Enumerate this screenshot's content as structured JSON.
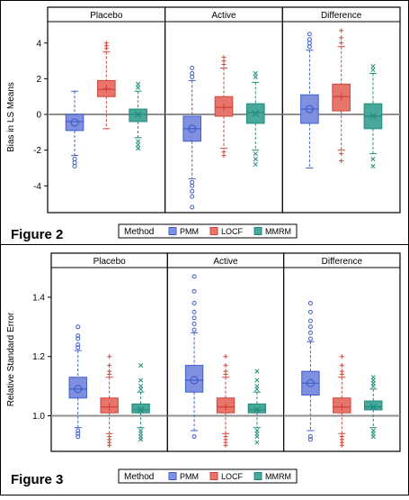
{
  "colors": {
    "pmm": "#3f5ecb",
    "locf": "#d1453a",
    "mmrm": "#1e8c7a",
    "pmm_fill": "#7f90e0",
    "locf_fill": "#e8756b",
    "mmrm_fill": "#4aa89a",
    "ref_line": "#909090"
  },
  "legend": {
    "title": "Method",
    "items": [
      "PMM",
      "LOCF",
      "MMRM"
    ]
  },
  "chart_data": [
    {
      "type": "box",
      "figure_label": "Figure 2",
      "ylabel": "Bias in LS Means",
      "panels": [
        "Placebo",
        "Active",
        "Difference"
      ],
      "yticks": [
        -4,
        -2,
        0,
        2,
        4
      ],
      "ylim": [
        -5.5,
        5.2
      ],
      "reference_line": 0,
      "series": [
        {
          "name": "PMM",
          "boxes": [
            {
              "panel": "Placebo",
              "whisker_low": -2.3,
              "q1": -0.9,
              "median": -0.4,
              "q3": 0.0,
              "whisker_high": 1.3,
              "mean": -0.45,
              "outliers": [
                -2.5,
                -2.7,
                -2.9
              ]
            },
            {
              "panel": "Active",
              "whisker_low": -3.6,
              "q1": -1.5,
              "median": -0.8,
              "q3": -0.1,
              "whisker_high": 1.9,
              "mean": -0.8,
              "outliers": [
                -3.8,
                -4.0,
                -4.3,
                -4.6,
                -5.2,
                2.1,
                2.3,
                2.6
              ]
            },
            {
              "panel": "Difference",
              "whisker_low": -3.0,
              "q1": -0.5,
              "median": 0.3,
              "q3": 1.1,
              "whisker_high": 3.6,
              "mean": 0.3,
              "outliers": [
                3.8,
                4.0,
                4.2,
                4.5
              ]
            }
          ]
        },
        {
          "name": "LOCF",
          "boxes": [
            {
              "panel": "Placebo",
              "whisker_low": -0.8,
              "q1": 1.0,
              "median": 1.4,
              "q3": 1.9,
              "whisker_high": 3.5,
              "mean": 1.45,
              "outliers": [
                3.7,
                3.85,
                4.0
              ]
            },
            {
              "panel": "Active",
              "whisker_low": -1.9,
              "q1": -0.1,
              "median": 0.4,
              "q3": 1.0,
              "whisker_high": 2.6,
              "mean": 0.4,
              "outliers": [
                -2.1,
                -2.3,
                2.8,
                3.0,
                3.2
              ]
            },
            {
              "panel": "Difference",
              "whisker_low": -2.0,
              "q1": 0.2,
              "median": 1.0,
              "q3": 1.7,
              "whisker_high": 3.8,
              "mean": 1.0,
              "outliers": [
                -2.2,
                -2.6,
                4.0,
                4.3,
                4.7
              ]
            }
          ]
        },
        {
          "name": "MMRM",
          "boxes": [
            {
              "panel": "Placebo",
              "whisker_low": -1.3,
              "q1": -0.4,
              "median": 0.0,
              "q3": 0.3,
              "whisker_high": 1.3,
              "mean": 0.0,
              "outliers": [
                -1.5,
                -1.7,
                -1.9,
                1.5,
                1.7
              ]
            },
            {
              "panel": "Active",
              "whisker_low": -2.0,
              "q1": -0.5,
              "median": 0.1,
              "q3": 0.6,
              "whisker_high": 1.8,
              "mean": 0.05,
              "outliers": [
                -2.2,
                -2.5,
                -2.8,
                2.1,
                2.3
              ]
            },
            {
              "panel": "Difference",
              "whisker_low": -2.2,
              "q1": -0.8,
              "median": -0.1,
              "q3": 0.6,
              "whisker_high": 2.3,
              "mean": -0.1,
              "outliers": [
                -2.5,
                -2.9,
                2.5,
                2.7
              ]
            }
          ]
        }
      ]
    },
    {
      "type": "box",
      "figure_label": "Figure 3",
      "ylabel": "Relative Standard Error",
      "panels": [
        "Placebo",
        "Active",
        "Difference"
      ],
      "yticks": [
        1.0,
        1.2,
        1.4
      ],
      "tick_format": "1.0",
      "ylim": [
        0.88,
        1.5
      ],
      "reference_line": 1.0,
      "series": [
        {
          "name": "PMM",
          "boxes": [
            {
              "panel": "Placebo",
              "whisker_low": 0.96,
              "q1": 1.06,
              "median": 1.09,
              "q3": 1.13,
              "whisker_high": 1.22,
              "mean": 1.09,
              "outliers": [
                0.95,
                0.94,
                0.93,
                1.23,
                1.24,
                1.26,
                1.27,
                1.3
              ]
            },
            {
              "panel": "Active",
              "whisker_low": 0.95,
              "q1": 1.08,
              "median": 1.12,
              "q3": 1.17,
              "whisker_high": 1.28,
              "mean": 1.12,
              "outliers": [
                0.93,
                1.29,
                1.31,
                1.33,
                1.35,
                1.38,
                1.42,
                1.47
              ]
            },
            {
              "panel": "Difference",
              "whisker_low": 0.95,
              "q1": 1.07,
              "median": 1.11,
              "q3": 1.15,
              "whisker_high": 1.25,
              "mean": 1.11,
              "outliers": [
                0.93,
                0.92,
                1.26,
                1.28,
                1.3,
                1.32,
                1.35,
                1.38
              ]
            }
          ]
        },
        {
          "name": "LOCF",
          "boxes": [
            {
              "panel": "Placebo",
              "whisker_low": 0.94,
              "q1": 1.01,
              "median": 1.03,
              "q3": 1.06,
              "whisker_high": 1.13,
              "mean": 1.03,
              "outliers": [
                0.93,
                0.92,
                0.91,
                0.9,
                1.14,
                1.15,
                1.17,
                1.2
              ]
            },
            {
              "panel": "Active",
              "whisker_low": 0.94,
              "q1": 1.01,
              "median": 1.03,
              "q3": 1.06,
              "whisker_high": 1.13,
              "mean": 1.03,
              "outliers": [
                0.93,
                0.92,
                0.91,
                0.9,
                1.14,
                1.15,
                1.17,
                1.2
              ]
            },
            {
              "panel": "Difference",
              "whisker_low": 0.94,
              "q1": 1.01,
              "median": 1.03,
              "q3": 1.06,
              "whisker_high": 1.13,
              "mean": 1.03,
              "outliers": [
                0.93,
                0.92,
                0.91,
                0.9,
                1.14,
                1.15,
                1.17,
                1.2
              ]
            }
          ]
        },
        {
          "name": "MMRM",
          "boxes": [
            {
              "panel": "Placebo",
              "whisker_low": 0.96,
              "q1": 1.01,
              "median": 1.02,
              "q3": 1.04,
              "whisker_high": 1.08,
              "mean": 1.02,
              "outliers": [
                0.95,
                0.94,
                0.93,
                0.92,
                1.09,
                1.1,
                1.12,
                1.17
              ]
            },
            {
              "panel": "Active",
              "whisker_low": 0.96,
              "q1": 1.01,
              "median": 1.02,
              "q3": 1.04,
              "whisker_high": 1.08,
              "mean": 1.02,
              "outliers": [
                0.95,
                0.94,
                0.93,
                0.91,
                1.09,
                1.1,
                1.12,
                1.15
              ]
            },
            {
              "panel": "Difference",
              "whisker_low": 0.96,
              "q1": 1.02,
              "median": 1.03,
              "q3": 1.05,
              "whisker_high": 1.09,
              "mean": 1.03,
              "outliers": [
                0.95,
                0.94,
                0.93,
                1.1,
                1.11,
                1.12,
                1.13
              ]
            }
          ]
        }
      ]
    }
  ]
}
